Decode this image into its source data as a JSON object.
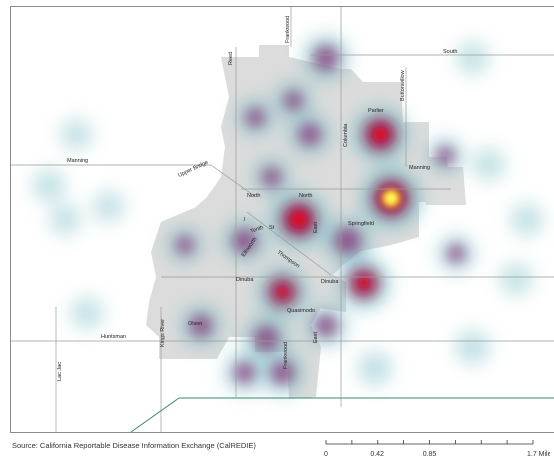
{
  "caption": "",
  "roads": [
    {
      "id": "manning-west",
      "label": "Manning"
    },
    {
      "id": "upper-bridge",
      "label": "Upper Bridge"
    },
    {
      "id": "reed",
      "label": "Reed"
    },
    {
      "id": "frankwood-n",
      "label": "Frankwood"
    },
    {
      "id": "south",
      "label": "South"
    },
    {
      "id": "buttonwillow",
      "label": "Buttonwillow"
    },
    {
      "id": "parlier",
      "label": "Parlier"
    },
    {
      "id": "columbia",
      "label": "Columbia"
    },
    {
      "id": "manning-east",
      "label": "Manning"
    },
    {
      "id": "north-1",
      "label": "North"
    },
    {
      "id": "north-2",
      "label": "North"
    },
    {
      "id": "tenth",
      "label": "Tenth"
    },
    {
      "id": "i",
      "label": "I"
    },
    {
      "id": "st",
      "label": "St"
    },
    {
      "id": "ellsworth",
      "label": "Ellsworth"
    },
    {
      "id": "thompson",
      "label": "Thompson"
    },
    {
      "id": "east-1",
      "label": "East"
    },
    {
      "id": "springfield",
      "label": "Springfield"
    },
    {
      "id": "dinuba-1",
      "label": "Dinuba"
    },
    {
      "id": "dinuba-2",
      "label": "Dinuba"
    },
    {
      "id": "olson",
      "label": "Olson"
    },
    {
      "id": "kings-river",
      "label": "Kings River"
    },
    {
      "id": "huntsman",
      "label": "Huntsman"
    },
    {
      "id": "lac-jac",
      "label": "Lac Jac"
    },
    {
      "id": "quasimodo",
      "label": "Quasimodo"
    },
    {
      "id": "east-2",
      "label": "East"
    },
    {
      "id": "frankwood-s",
      "label": "Frankwood"
    }
  ],
  "hotspots": [
    {
      "lon": 0.58,
      "lat": 0.12,
      "intensity": 0.55
    },
    {
      "lon": 0.52,
      "lat": 0.22,
      "intensity": 0.35
    },
    {
      "lon": 0.68,
      "lat": 0.3,
      "intensity": 0.85
    },
    {
      "lon": 0.55,
      "lat": 0.3,
      "intensity": 0.45
    },
    {
      "lon": 0.45,
      "lat": 0.26,
      "intensity": 0.35
    },
    {
      "lon": 0.7,
      "lat": 0.45,
      "intensity": 1.0
    },
    {
      "lon": 0.53,
      "lat": 0.5,
      "intensity": 0.9
    },
    {
      "lon": 0.48,
      "lat": 0.4,
      "intensity": 0.35
    },
    {
      "lon": 0.62,
      "lat": 0.55,
      "intensity": 0.6
    },
    {
      "lon": 0.43,
      "lat": 0.55,
      "intensity": 0.5
    },
    {
      "lon": 0.32,
      "lat": 0.56,
      "intensity": 0.3
    },
    {
      "lon": 0.65,
      "lat": 0.65,
      "intensity": 0.75
    },
    {
      "lon": 0.5,
      "lat": 0.67,
      "intensity": 0.7
    },
    {
      "lon": 0.58,
      "lat": 0.75,
      "intensity": 0.45
    },
    {
      "lon": 0.47,
      "lat": 0.78,
      "intensity": 0.55
    },
    {
      "lon": 0.35,
      "lat": 0.75,
      "intensity": 0.45
    },
    {
      "lon": 0.5,
      "lat": 0.86,
      "intensity": 0.5
    },
    {
      "lon": 0.43,
      "lat": 0.86,
      "intensity": 0.4
    },
    {
      "lon": 0.8,
      "lat": 0.35,
      "intensity": 0.3
    },
    {
      "lon": 0.82,
      "lat": 0.58,
      "intensity": 0.3
    },
    {
      "lon": 0.88,
      "lat": 0.37,
      "intensity": 0.15
    },
    {
      "lon": 0.95,
      "lat": 0.5,
      "intensity": 0.15
    },
    {
      "lon": 0.93,
      "lat": 0.64,
      "intensity": 0.15
    },
    {
      "lon": 0.85,
      "lat": 0.8,
      "intensity": 0.2
    },
    {
      "lon": 0.07,
      "lat": 0.42,
      "intensity": 0.15
    },
    {
      "lon": 0.12,
      "lat": 0.3,
      "intensity": 0.12
    },
    {
      "lon": 0.14,
      "lat": 0.72,
      "intensity": 0.15
    },
    {
      "lon": 0.1,
      "lat": 0.5,
      "intensity": 0.12
    },
    {
      "lon": 0.18,
      "lat": 0.47,
      "intensity": 0.12
    },
    {
      "lon": 0.67,
      "lat": 0.85,
      "intensity": 0.2
    },
    {
      "lon": 0.85,
      "lat": 0.12,
      "intensity": 0.15
    }
  ],
  "source": "Source:  California Reportable Disease Information Exchange (CalREDIE)",
  "scale": {
    "ticks": [
      "0",
      "0.42",
      "0.85",
      "1.7 Miles"
    ],
    "tick_values": [
      0,
      0.42,
      0.85,
      1.7
    ]
  }
}
